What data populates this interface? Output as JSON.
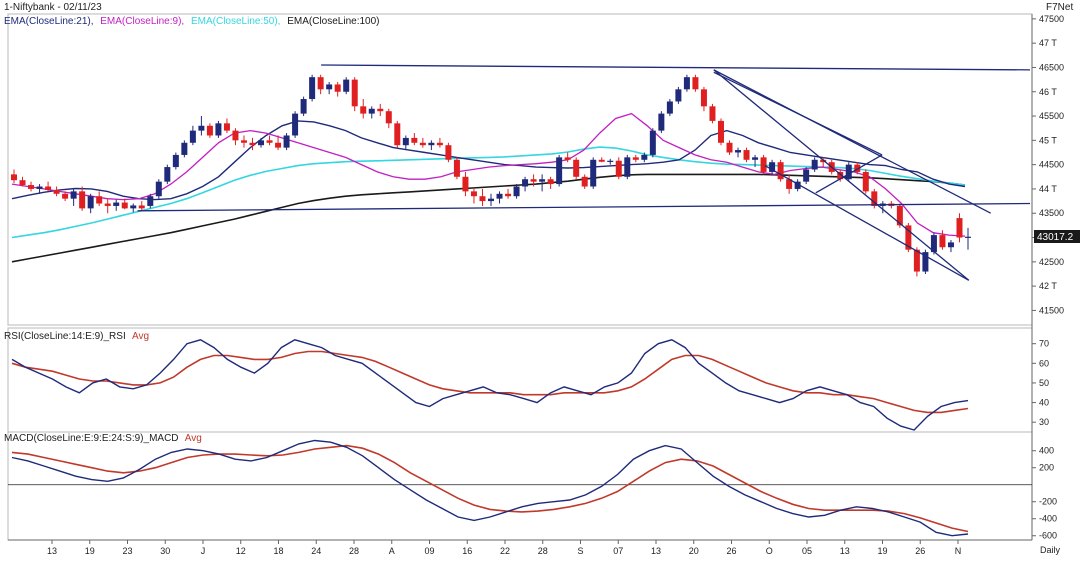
{
  "header": {
    "title": "1-Niftybank - 02/11/23",
    "source": "F7Net",
    "period": "Daily"
  },
  "colors": {
    "ema21": "#1f2a7a",
    "ema9": "#c21fc2",
    "ema50": "#34d6e0",
    "ema100": "#1a1a1a",
    "up_candle": "#1f2a7a",
    "down_candle": "#e02020",
    "rsi": "#1f2a7a",
    "rsi_avg": "#c0392b",
    "macd": "#1f2a7a",
    "macd_avg": "#c0392b",
    "trendline": "#1f2a7a",
    "price_tag_bg": "#1a1a1a",
    "price_tag_text": "#ffffff"
  },
  "price_panel": {
    "legend": [
      {
        "text": "EMA(CloseLine:21),",
        "color_key": "ema21"
      },
      {
        "text": "EMA(CloseLine:9),",
        "color_key": "ema9"
      },
      {
        "text": "EMA(CloseLine:50),",
        "color_key": "ema50"
      },
      {
        "text": "EMA(CloseLine:100)",
        "color_key": "ema100"
      }
    ],
    "y_ticks": [
      {
        "label": "47500",
        "value": 47500
      },
      {
        "label": "47 T",
        "value": 47000
      },
      {
        "label": "46500",
        "value": 46500
      },
      {
        "label": "46 T",
        "value": 46000
      },
      {
        "label": "45500",
        "value": 45500
      },
      {
        "label": "45 T",
        "value": 45000
      },
      {
        "label": "44500",
        "value": 44500
      },
      {
        "label": "44 T",
        "value": 44000
      },
      {
        "label": "43500",
        "value": 43500
      },
      {
        "label": "43 T",
        "value": 43000
      },
      {
        "label": "42500",
        "value": 42500
      },
      {
        "label": "42 T",
        "value": 42000
      },
      {
        "label": "41500",
        "value": 41500
      }
    ],
    "last_price_label": "43017.2"
  },
  "rsi_panel": {
    "legend_main": "RSI(CloseLine:14:E:9)_RSI",
    "legend_avg": "Avg",
    "y_ticks": [
      {
        "label": "70",
        "value": 70
      },
      {
        "label": "60",
        "value": 60
      },
      {
        "label": "50",
        "value": 50
      },
      {
        "label": "40",
        "value": 40
      },
      {
        "label": "30",
        "value": 30
      }
    ]
  },
  "macd_panel": {
    "legend_main": "MACD(CloseLine:E:9:E:24:S:9)_MACD",
    "legend_avg": "Avg",
    "y_ticks": [
      {
        "label": "400",
        "value": 400
      },
      {
        "label": "200",
        "value": 200
      },
      {
        "label": "-200",
        "value": -200
      },
      {
        "label": "-400",
        "value": -400
      },
      {
        "label": "-600",
        "value": -600
      }
    ]
  },
  "x_ticks": [
    "13",
    "19",
    "23",
    "30",
    "J",
    "12",
    "18",
    "24",
    "28",
    "A",
    "09",
    "16",
    "22",
    "28",
    "S",
    "07",
    "13",
    "20",
    "26",
    "O",
    "05",
    "13",
    "19",
    "26",
    "N"
  ],
  "chart_data": {
    "type": "candlestick",
    "title": "1-Niftybank - 02/11/23",
    "ylim": [
      41200,
      47600
    ],
    "candles": [
      [
        44300,
        44400,
        44120,
        44180
      ],
      [
        44180,
        44250,
        44050,
        44080
      ],
      [
        44080,
        44150,
        43950,
        44000
      ],
      [
        44000,
        44100,
        43900,
        44050
      ],
      [
        44050,
        44150,
        43950,
        43980
      ],
      [
        43980,
        44050,
        43850,
        43900
      ],
      [
        43900,
        43950,
        43750,
        43800
      ],
      [
        43800,
        44000,
        43650,
        43950
      ],
      [
        43950,
        44050,
        43550,
        43600
      ],
      [
        43600,
        43900,
        43500,
        43850
      ],
      [
        43850,
        43950,
        43650,
        43700
      ],
      [
        43700,
        43800,
        43500,
        43650
      ],
      [
        43650,
        43780,
        43550,
        43720
      ],
      [
        43720,
        43800,
        43580,
        43600
      ],
      [
        43600,
        43700,
        43520,
        43660
      ],
      [
        43660,
        43750,
        43550,
        43600
      ],
      [
        43650,
        43900,
        43600,
        43850
      ],
      [
        43850,
        44200,
        43800,
        44150
      ],
      [
        44150,
        44500,
        44100,
        44450
      ],
      [
        44450,
        44750,
        44400,
        44700
      ],
      [
        44700,
        45000,
        44650,
        44950
      ],
      [
        44950,
        45300,
        44900,
        45200
      ],
      [
        45200,
        45500,
        45100,
        45300
      ],
      [
        45300,
        45350,
        45050,
        45100
      ],
      [
        45100,
        45400,
        45050,
        45350
      ],
      [
        45350,
        45450,
        45150,
        45200
      ],
      [
        45200,
        45250,
        44900,
        45000
      ],
      [
        45000,
        45100,
        44850,
        44950
      ],
      [
        44950,
        45050,
        44800,
        44900
      ],
      [
        44900,
        45050,
        44850,
        45000
      ],
      [
        45000,
        45100,
        44900,
        44950
      ],
      [
        44950,
        45100,
        44800,
        44850
      ],
      [
        44850,
        45150,
        44800,
        45100
      ],
      [
        45100,
        45600,
        45050,
        45550
      ],
      [
        45550,
        45900,
        45500,
        45850
      ],
      [
        45850,
        46350,
        45800,
        46300
      ],
      [
        46300,
        46350,
        45950,
        46050
      ],
      [
        46050,
        46200,
        45950,
        46150
      ],
      [
        46150,
        46200,
        45900,
        46000
      ],
      [
        46000,
        46300,
        45950,
        46250
      ],
      [
        46250,
        46300,
        45600,
        45700
      ],
      [
        45700,
        45850,
        45450,
        45550
      ],
      [
        45550,
        45700,
        45450,
        45650
      ],
      [
        45650,
        45750,
        45500,
        45600
      ],
      [
        45600,
        45650,
        45250,
        45350
      ],
      [
        45350,
        45400,
        44850,
        44900
      ],
      [
        44900,
        45100,
        44800,
        45050
      ],
      [
        45050,
        45150,
        44900,
        44950
      ],
      [
        44950,
        45050,
        44850,
        44900
      ],
      [
        44900,
        45000,
        44800,
        44950
      ],
      [
        44950,
        45050,
        44850,
        44900
      ],
      [
        44900,
        44950,
        44550,
        44600
      ],
      [
        44600,
        44650,
        44200,
        44250
      ],
      [
        44250,
        44350,
        43850,
        43950
      ],
      [
        43950,
        44000,
        43700,
        43850
      ],
      [
        43850,
        44000,
        43650,
        43750
      ],
      [
        43750,
        43900,
        43650,
        43800
      ],
      [
        43800,
        43950,
        43700,
        43900
      ],
      [
        43900,
        44000,
        43800,
        43850
      ],
      [
        43850,
        44100,
        43800,
        44050
      ],
      [
        44050,
        44250,
        43950,
        44200
      ],
      [
        44200,
        44300,
        44050,
        44150
      ],
      [
        44150,
        44300,
        43950,
        44200
      ],
      [
        44200,
        44250,
        44000,
        44100
      ],
      [
        44100,
        44700,
        44050,
        44650
      ],
      [
        44650,
        44750,
        44550,
        44600
      ],
      [
        44600,
        44650,
        44200,
        44250
      ],
      [
        44250,
        44300,
        44000,
        44050
      ],
      [
        44050,
        44650,
        44000,
        44600
      ],
      [
        44600,
        44650,
        44550,
        44560
      ],
      [
        44560,
        44620,
        44500,
        44580
      ],
      [
        44580,
        44650,
        44200,
        44250
      ],
      [
        44250,
        44700,
        44200,
        44650
      ],
      [
        44650,
        44700,
        44550,
        44600
      ],
      [
        44600,
        44750,
        44550,
        44700
      ],
      [
        44700,
        45250,
        44650,
        45200
      ],
      [
        45200,
        45600,
        45150,
        45550
      ],
      [
        45550,
        45850,
        45500,
        45800
      ],
      [
        45800,
        46100,
        45750,
        46050
      ],
      [
        46050,
        46350,
        46000,
        46300
      ],
      [
        46300,
        46350,
        46000,
        46050
      ],
      [
        46050,
        46100,
        45600,
        45700
      ],
      [
        45700,
        45750,
        45350,
        45400
      ],
      [
        45400,
        45450,
        44900,
        44950
      ],
      [
        44950,
        45000,
        44700,
        44750
      ],
      [
        44750,
        44850,
        44650,
        44800
      ],
      [
        44800,
        44850,
        44550,
        44600
      ],
      [
        44600,
        44700,
        44450,
        44650
      ],
      [
        44650,
        44700,
        44300,
        44350
      ],
      [
        44350,
        44600,
        44300,
        44550
      ],
      [
        44550,
        44600,
        44150,
        44200
      ],
      [
        44200,
        44300,
        43900,
        44000
      ],
      [
        44000,
        44200,
        43950,
        44150
      ],
      [
        44150,
        44450,
        44100,
        44400
      ],
      [
        44400,
        44650,
        44350,
        44600
      ],
      [
        44600,
        44650,
        44450,
        44550
      ],
      [
        44550,
        44600,
        44300,
        44350
      ],
      [
        44350,
        44400,
        44150,
        44200
      ],
      [
        44200,
        44550,
        44150,
        44500
      ],
      [
        44500,
        44550,
        44300,
        44350
      ],
      [
        44350,
        44400,
        43900,
        43950
      ],
      [
        43950,
        44000,
        43600,
        43650
      ],
      [
        43650,
        43750,
        43500,
        43700
      ],
      [
        43700,
        43750,
        43600,
        43650
      ],
      [
        43650,
        43700,
        43200,
        43250
      ],
      [
        43250,
        43300,
        42700,
        42750
      ],
      [
        42750,
        42800,
        42200,
        42300
      ],
      [
        42300,
        42750,
        42250,
        42700
      ],
      [
        42700,
        43100,
        42650,
        43050
      ],
      [
        43050,
        43150,
        42750,
        42800
      ],
      [
        42800,
        42950,
        42700,
        42900
      ],
      [
        43400,
        43500,
        42900,
        43000
      ],
      [
        43000,
        43200,
        42750,
        43017
      ]
    ],
    "ema_lines": {
      "ema21": [
        43800,
        43870,
        43930,
        43980,
        44010,
        44000,
        43950,
        43850,
        43800,
        43780,
        43800,
        43900,
        44050,
        44250,
        44550,
        44850,
        45100,
        45300,
        45400,
        45380,
        45300,
        45200,
        45050,
        44950,
        44850,
        44800,
        44750,
        44700,
        44650,
        44600,
        44550,
        44500,
        44480,
        44450,
        44440,
        44430,
        44440,
        44460,
        44480,
        44500,
        44520,
        44550,
        44600,
        44800,
        45100,
        45200,
        45100,
        44950,
        44850,
        44750,
        44700,
        44650,
        44600,
        44550,
        44500,
        44480,
        44400,
        44350,
        44200,
        44100,
        44050
      ],
      "ema9": [
        44100,
        44050,
        44000,
        43950,
        43900,
        43850,
        43800,
        43780,
        43800,
        43900,
        44100,
        44350,
        44650,
        44950,
        45150,
        45200,
        45150,
        45050,
        44950,
        44850,
        44750,
        44650,
        44500,
        44350,
        44250,
        44200,
        44200,
        44250,
        44350,
        44400,
        44450,
        44480,
        44500,
        44520,
        44550,
        44600,
        44800,
        45150,
        45450,
        45550,
        45300,
        45000,
        44850,
        44700,
        44600,
        44550,
        44450,
        44350,
        44300,
        44380,
        44420,
        44450,
        44400,
        44350,
        44250,
        44000,
        43700,
        43300,
        43100,
        43050,
        43030
      ],
      "ema50": [
        43000,
        43050,
        43100,
        43160,
        43230,
        43300,
        43380,
        43460,
        43540,
        43620,
        43700,
        43800,
        43920,
        44050,
        44180,
        44280,
        44360,
        44420,
        44480,
        44520,
        44540,
        44560,
        44570,
        44580,
        44590,
        44600,
        44610,
        44620,
        44630,
        44640,
        44650,
        44660,
        44680,
        44700,
        44720,
        44760,
        44820,
        44860,
        44840,
        44780,
        44700,
        44650,
        44600,
        44560,
        44530,
        44510,
        44500,
        44490,
        44480,
        44470,
        44460,
        44450,
        44440,
        44420,
        44380,
        44320,
        44260,
        44210,
        44160,
        44120,
        44080
      ],
      "ema100": [
        42500,
        42560,
        42620,
        42680,
        42740,
        42800,
        42860,
        42920,
        42980,
        43040,
        43100,
        43170,
        43240,
        43310,
        43380,
        43460,
        43540,
        43620,
        43700,
        43760,
        43810,
        43850,
        43880,
        43900,
        43920,
        43940,
        43960,
        43980,
        44000,
        44020,
        44040,
        44060,
        44080,
        44100,
        44130,
        44160,
        44200,
        44240,
        44270,
        44290,
        44300,
        44300,
        44300,
        44300,
        44300,
        44300,
        44300,
        44300,
        44290,
        44280,
        44270,
        44260,
        44250,
        44240,
        44230,
        44210,
        44190,
        44170,
        44150,
        44120,
        44080
      ]
    },
    "trendlines": [
      {
        "from": [
          0.305,
          46550
        ],
        "to": [
          1.0,
          46450
        ]
      },
      {
        "from": [
          0.125,
          43550
        ],
        "to": [
          1.0,
          43700
        ]
      },
      {
        "from": [
          0.69,
          46450
        ],
        "to": [
          0.9615,
          43500
        ]
      },
      {
        "from": [
          0.69,
          46450
        ],
        "to": [
          0.94,
          42120
        ]
      },
      {
        "from": [
          0.74,
          44480
        ],
        "to": [
          0.94,
          42120
        ]
      },
      {
        "from": [
          0.79,
          43920
        ],
        "to": [
          0.855,
          44700
        ]
      },
      {
        "from": [
          0.855,
          44700
        ],
        "to": [
          0.69,
          46400
        ]
      }
    ],
    "rsi": {
      "ylim": [
        25,
        78
      ],
      "rsi": [
        62,
        58,
        55,
        52,
        48,
        45,
        50,
        52,
        48,
        47,
        49,
        55,
        62,
        70,
        72,
        68,
        62,
        58,
        55,
        60,
        68,
        72,
        70,
        68,
        64,
        62,
        60,
        55,
        50,
        45,
        40,
        38,
        42,
        44,
        46,
        48,
        45,
        44,
        42,
        40,
        45,
        48,
        46,
        44,
        48,
        50,
        55,
        65,
        70,
        72,
        68,
        60,
        55,
        50,
        46,
        44,
        42,
        40,
        42,
        46,
        48,
        46,
        44,
        40,
        38,
        32,
        28,
        26,
        33,
        38,
        40,
        41
      ],
      "avg": [
        60,
        58,
        57,
        56,
        54,
        52,
        51,
        51,
        50,
        49,
        49,
        50,
        53,
        58,
        62,
        64,
        64,
        63,
        62,
        62,
        63,
        65,
        66,
        66,
        65,
        64,
        63,
        61,
        58,
        55,
        52,
        49,
        47,
        46,
        45,
        45,
        45,
        45,
        44,
        44,
        44,
        45,
        45,
        45,
        45,
        46,
        48,
        52,
        57,
        62,
        64,
        64,
        62,
        59,
        56,
        53,
        50,
        48,
        46,
        45,
        45,
        44,
        44,
        43,
        42,
        40,
        38,
        36,
        35,
        35,
        36,
        37
      ]
    },
    "macd": {
      "ylim": [
        -650,
        620
      ],
      "macd": [
        320,
        280,
        220,
        160,
        100,
        60,
        40,
        80,
        180,
        300,
        380,
        420,
        400,
        360,
        300,
        280,
        320,
        400,
        480,
        520,
        500,
        440,
        340,
        200,
        60,
        -60,
        -180,
        -280,
        -380,
        -420,
        -380,
        -320,
        -260,
        -220,
        -200,
        -180,
        -120,
        -20,
        120,
        300,
        400,
        460,
        420,
        260,
        100,
        -20,
        -120,
        -200,
        -280,
        -340,
        -380,
        -360,
        -300,
        -260,
        -280,
        -320,
        -380,
        -440,
        -560,
        -600,
        -580
      ],
      "avg": [
        380,
        360,
        320,
        280,
        240,
        200,
        160,
        140,
        160,
        200,
        260,
        320,
        350,
        360,
        360,
        350,
        340,
        350,
        380,
        420,
        440,
        460,
        430,
        360,
        260,
        140,
        40,
        -60,
        -160,
        -240,
        -290,
        -310,
        -320,
        -310,
        -290,
        -260,
        -220,
        -160,
        -80,
        40,
        160,
        260,
        300,
        280,
        220,
        120,
        20,
        -80,
        -160,
        -230,
        -280,
        -300,
        -300,
        -300,
        -300,
        -310,
        -340,
        -390,
        -450,
        -510,
        -550
      ]
    }
  }
}
